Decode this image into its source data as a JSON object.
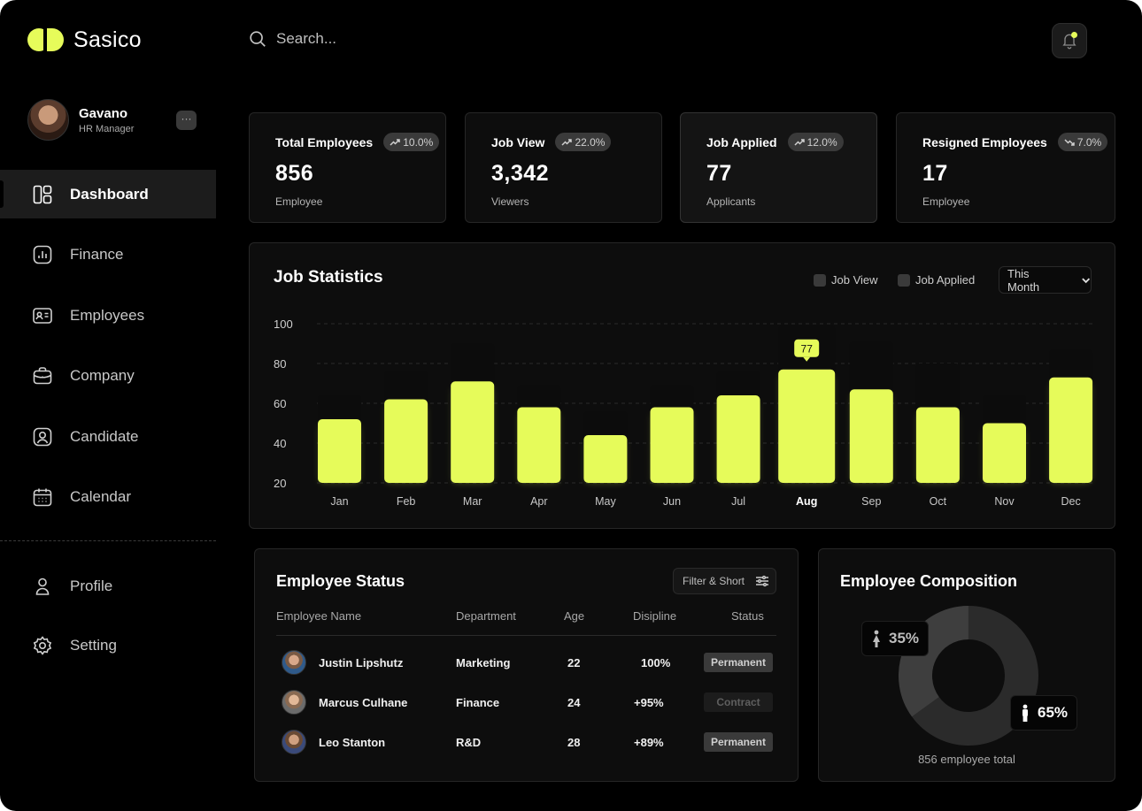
{
  "app": {
    "name": "Sasico"
  },
  "user": {
    "name": "Gavano",
    "role": "HR Manager",
    "more_label": "···"
  },
  "search": {
    "placeholder": "Search..."
  },
  "nav": {
    "items": [
      {
        "label": "Dashboard",
        "icon": "dashboard-icon",
        "active": true
      },
      {
        "label": "Finance",
        "icon": "finance-chart-icon"
      },
      {
        "label": "Employees",
        "icon": "id-card-icon"
      },
      {
        "label": "Company",
        "icon": "briefcase-icon"
      },
      {
        "label": "Candidate",
        "icon": "candidate-user-icon"
      },
      {
        "label": "Calendar",
        "icon": "calendar-icon"
      }
    ],
    "secondary": [
      {
        "label": "Profile",
        "icon": "person-icon"
      },
      {
        "label": "Setting",
        "icon": "gear-icon"
      }
    ]
  },
  "stats": [
    {
      "title": "Total Employees",
      "change": "10.0%",
      "trend": "up",
      "value": "856",
      "sub": "Employee"
    },
    {
      "title": "Job View",
      "change": "22.0%",
      "trend": "up",
      "value": "3,342",
      "sub": "Viewers"
    },
    {
      "title": "Job Applied",
      "change": "12.0%",
      "trend": "up",
      "value": "77",
      "sub": "Applicants"
    },
    {
      "title": "Resigned Employees",
      "change": "7.0%",
      "trend": "down",
      "value": "17",
      "sub": "Employee"
    }
  ],
  "job_statistics": {
    "title": "Job Statistics",
    "legend": [
      "Job View",
      "Job Applied"
    ],
    "period": "This Month",
    "highlight_label": "77"
  },
  "chart_data": {
    "type": "bar",
    "categories": [
      "Jan",
      "Feb",
      "Mar",
      "Apr",
      "May",
      "Jun",
      "Jul",
      "Aug",
      "Sep",
      "Oct",
      "Nov",
      "Dec"
    ],
    "series": [
      {
        "name": "Job View",
        "values": [
          64,
          76,
          90,
          69,
          56,
          69,
          76,
          99,
          91,
          80,
          64,
          87
        ]
      },
      {
        "name": "Job Applied",
        "values": [
          52,
          62,
          71,
          58,
          44,
          58,
          64,
          77,
          67,
          58,
          50,
          73
        ]
      }
    ],
    "yticks": [
      100,
      80,
      60,
      40,
      20
    ],
    "ylim": [
      20,
      100
    ],
    "highlight_category": "Aug",
    "colors": {
      "applied": "#e6fb5a",
      "view": "#0c0c0c"
    }
  },
  "employee_status": {
    "title": "Employee Status",
    "filter_label": "Filter & Short",
    "columns": [
      "Employee Name",
      "Department",
      "Age",
      "Disipline",
      "Status"
    ],
    "rows": [
      {
        "name": "Justin Lipshutz",
        "department": "Marketing",
        "age": "22",
        "discipline": "100%",
        "status": "Permanent"
      },
      {
        "name": "Marcus Culhane",
        "department": "Finance",
        "age": "24",
        "discipline": "+95%",
        "status": "Contract"
      },
      {
        "name": "Leo Stanton",
        "department": "R&D",
        "age": "28",
        "discipline": "+89%",
        "status": "Permanent"
      }
    ]
  },
  "employee_composition": {
    "title": "Employee Composition",
    "female_pct": "35%",
    "male_pct": "65%",
    "female_fraction": 0.35,
    "male_fraction": 0.65,
    "total_label": "856 employee total"
  }
}
